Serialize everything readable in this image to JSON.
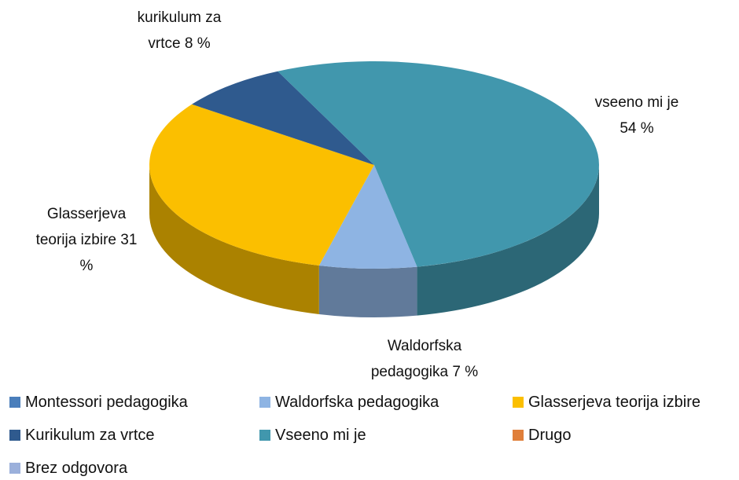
{
  "chart_data": {
    "type": "pie3d",
    "categories": [
      "Montessori pedagogika",
      "Waldorfska pedagogika",
      "Glasserjeva teorija izbire",
      "Kurikulum za vrtce",
      "Vseeno mi je",
      "Drugo",
      "Brez odgovora"
    ],
    "values": [
      0,
      7,
      31,
      8,
      54,
      0,
      0
    ],
    "slice_labels": [
      null,
      "Waldorfska pedagogika",
      "Glasserjeva teorija izbire",
      "kurikulum za vrtce",
      "vseeno mi je",
      null,
      null
    ],
    "value_labels": [
      null,
      "7 %",
      "31 %",
      "8 %",
      "54 %",
      null,
      null
    ],
    "colors": [
      "#4a7ebb",
      "#8eb4e3",
      "#fbbf00",
      "#2f5a8e",
      "#4197ad",
      "#e07f3a",
      "#9bb0db"
    ],
    "legend": "bottom"
  }
}
